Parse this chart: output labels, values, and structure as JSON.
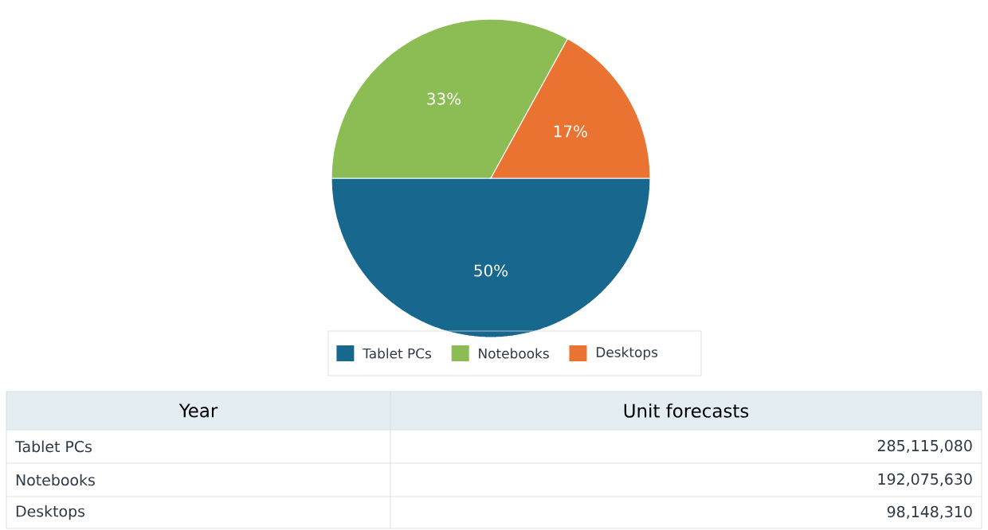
{
  "chart_data": {
    "type": "pie",
    "categories": [
      "Tablet PCs",
      "Notebooks",
      "Desktops"
    ],
    "values": [
      50,
      33,
      17
    ],
    "colors": [
      "#17678f",
      "#8cbd55",
      "#ea7332"
    ],
    "value_labels": [
      "50%",
      "33%",
      "17%"
    ],
    "legend": "bottom",
    "xlabel": "Year",
    "ylabel": "Unit forecasts",
    "annotations": [
      "285,115,080",
      "192,075,630",
      "98,148,310"
    ]
  }
}
